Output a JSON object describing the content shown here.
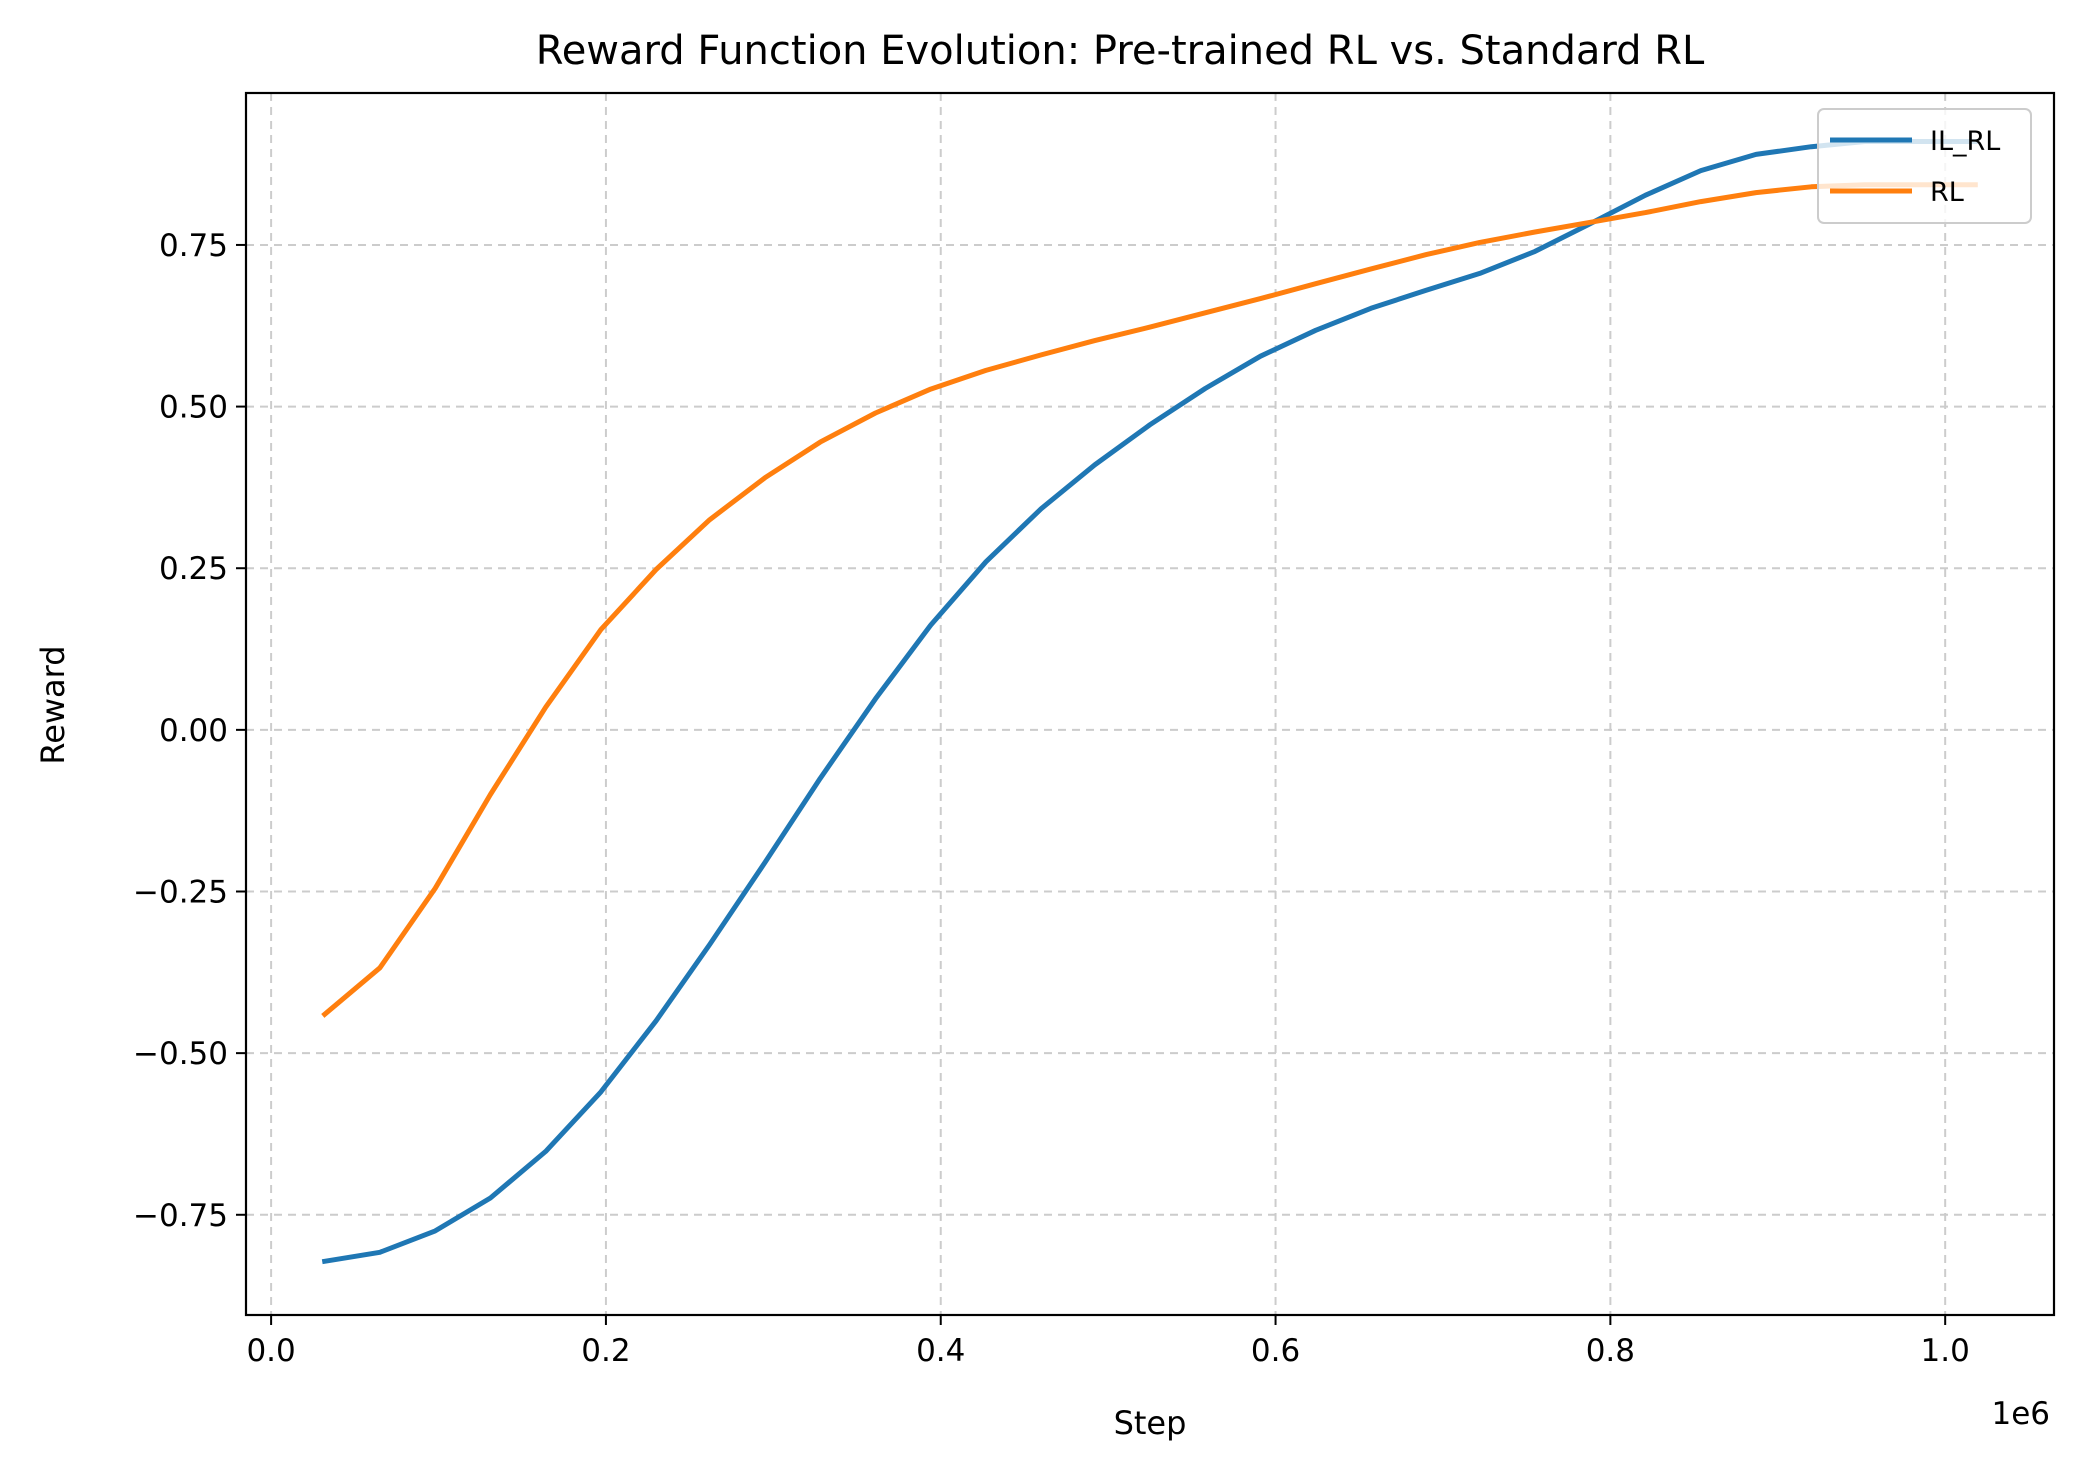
{
  "chart_data": {
    "type": "line",
    "title": "Reward Function Evolution: Pre-trained RL vs. Standard RL",
    "xlabel": "Step",
    "ylabel": "Reward",
    "x_offset_label": "1e6",
    "xlim": [
      -15000,
      1065000
    ],
    "ylim": [
      -0.905,
      0.985
    ],
    "x_ticks": [
      0,
      200000,
      400000,
      600000,
      800000,
      1000000
    ],
    "x_tick_labels": [
      "0.0",
      "0.2",
      "0.4",
      "0.6",
      "0.8",
      "1.0"
    ],
    "y_ticks": [
      -0.75,
      -0.5,
      -0.25,
      0.0,
      0.25,
      0.5,
      0.75
    ],
    "y_tick_labels": [
      "−0.75",
      "−0.50",
      "−0.25",
      "0.00",
      "0.25",
      "0.50",
      "0.75"
    ],
    "grid": true,
    "legend_position": "top-right",
    "series": [
      {
        "name": "IL_RL",
        "color": "#1f77b4",
        "x": [
          32000,
          65000,
          98000,
          131000,
          164000,
          197000,
          230000,
          262000,
          295000,
          328000,
          361000,
          394000,
          427000,
          460000,
          492000,
          525000,
          558000,
          591000,
          624000,
          657000,
          690000,
          722000,
          755000,
          788000,
          821000,
          854000,
          887000,
          920000,
          952000,
          985000,
          1018000
        ],
        "y": [
          -0.822,
          -0.808,
          -0.775,
          -0.724,
          -0.652,
          -0.56,
          -0.45,
          -0.332,
          -0.205,
          -0.075,
          0.048,
          0.162,
          0.26,
          0.342,
          0.41,
          0.472,
          0.528,
          0.578,
          0.618,
          0.652,
          0.68,
          0.706,
          0.74,
          0.783,
          0.827,
          0.865,
          0.89,
          0.902,
          0.91,
          0.91,
          0.91
        ]
      },
      {
        "name": "RL",
        "color": "#ff7f0e",
        "x": [
          32000,
          65000,
          98000,
          131000,
          164000,
          197000,
          230000,
          262000,
          295000,
          328000,
          361000,
          394000,
          427000,
          460000,
          492000,
          525000,
          558000,
          591000,
          624000,
          657000,
          690000,
          722000,
          755000,
          788000,
          821000,
          854000,
          887000,
          920000,
          952000,
          985000,
          1018000
        ],
        "y": [
          -0.44,
          -0.368,
          -0.245,
          -0.1,
          0.035,
          0.155,
          0.248,
          0.325,
          0.39,
          0.445,
          0.49,
          0.527,
          0.556,
          0.58,
          0.602,
          0.623,
          0.645,
          0.667,
          0.69,
          0.713,
          0.735,
          0.754,
          0.77,
          0.785,
          0.8,
          0.817,
          0.831,
          0.84,
          0.843,
          0.843,
          0.843
        ]
      }
    ]
  }
}
